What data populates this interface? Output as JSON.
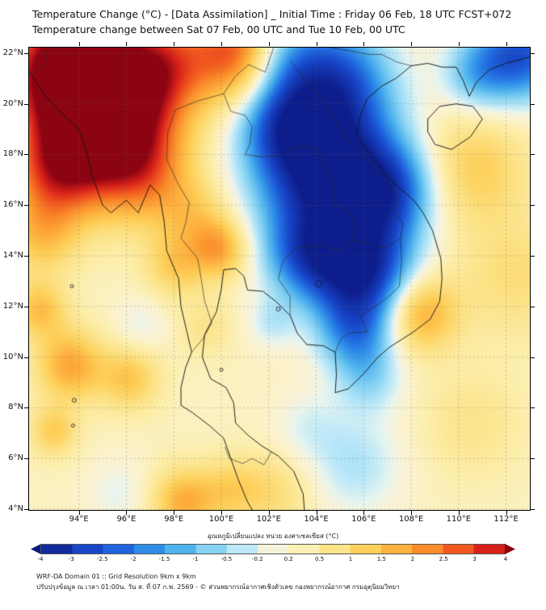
{
  "header": {
    "title_line1": "Temperature Change (°C) - [Data Assimilation] _ Initial Time : Friday 06 Feb, 18 UTC FCST+072",
    "title_line2": "Temperature change between Sat 07 Feb, 00 UTC and Tue 10 Feb, 00 UTC"
  },
  "footer": {
    "line1": "WRF-DA Domain 01 :: Grid Resolution 9km x 9km",
    "line2": "ปรับปรุงข้อมูล ณ เวลา 01:00น. วัน ส. ที่ 07 ก.พ. 2569 - © ส่วนพยากรณ์อากาศเชิงตัวเลข กองพยากรณ์อากาศ กรมอุตุนิยมวิทยา"
  },
  "colorbar": {
    "label": "อุณหภูมิเปลี่ยนแปลง หน่วย องศาเซลเซียส (°C)",
    "tip_left": "#081a7a",
    "tip_right": "#8c0410",
    "segments": [
      "#122a9e",
      "#1845c6",
      "#2063dd",
      "#2e8ce8",
      "#4fb3ee",
      "#85d2f3",
      "#bce8f8",
      "#f5f2dc",
      "#fdf0b4",
      "#fce488",
      "#fdd05a",
      "#fdb240",
      "#fb8c2a",
      "#f2581e",
      "#d81f1a"
    ],
    "ticks": [
      "-4",
      "-3",
      "-2.5",
      "-2",
      "-1.5",
      "-1",
      "-0.5",
      "-0.2",
      "0.2",
      "0.5",
      "1",
      "1.5",
      "2",
      "2.5",
      "3",
      "4"
    ],
    "stops": [
      [
        -4,
        "#0d1e8c"
      ],
      [
        -3,
        "#1743c4"
      ],
      [
        -2.5,
        "#1f62dc"
      ],
      [
        -2,
        "#2d8ae8"
      ],
      [
        -1.5,
        "#4eb2ee"
      ],
      [
        -1,
        "#84d1f3"
      ],
      [
        -0.5,
        "#bce8f8"
      ],
      [
        -0.2,
        "#e6f4ef"
      ],
      [
        0,
        "#f7f2da"
      ],
      [
        0.2,
        "#fbf2cc"
      ],
      [
        0.5,
        "#fceeab"
      ],
      [
        1,
        "#fce184"
      ],
      [
        1.5,
        "#fdcf58"
      ],
      [
        2,
        "#fdb03e"
      ],
      [
        2.5,
        "#fa8a2a"
      ],
      [
        3,
        "#f0541e"
      ],
      [
        3.5,
        "#d31e1a"
      ],
      [
        4,
        "#8c0412"
      ]
    ]
  },
  "chart_data": {
    "type": "heatmap",
    "title": "Temperature Change (°C) - [Data Assimilation]",
    "units": "°C",
    "grid": true,
    "proj": {
      "lon_min": 91.9,
      "lon_max": 113.0,
      "lat_min": 3.97,
      "lat_max": 22.22
    },
    "x_ticks": [
      {
        "value": 94,
        "label": "94°E"
      },
      {
        "value": 96,
        "label": "96°E"
      },
      {
        "value": 98,
        "label": "98°E"
      },
      {
        "value": 100,
        "label": "100°E"
      },
      {
        "value": 102,
        "label": "102°E"
      },
      {
        "value": 104,
        "label": "104°E"
      },
      {
        "value": 106,
        "label": "106°E"
      },
      {
        "value": 108,
        "label": "108°E"
      },
      {
        "value": 110,
        "label": "110°E"
      },
      {
        "value": 112,
        "label": "112°E"
      }
    ],
    "y_ticks": [
      {
        "value": 22,
        "label": "22°N"
      },
      {
        "value": 20,
        "label": "20°N"
      },
      {
        "value": 18,
        "label": "18°N"
      },
      {
        "value": 16,
        "label": "16°N"
      },
      {
        "value": 14,
        "label": "14°N"
      },
      {
        "value": 12,
        "label": "12°N"
      },
      {
        "value": 10,
        "label": "10°N"
      },
      {
        "value": 8,
        "label": "8°N"
      },
      {
        "value": 6,
        "label": "6°N"
      },
      {
        "value": 4,
        "label": "4°N"
      }
    ],
    "base_value": 0.3,
    "field_blobs": [
      [
        95.0,
        19.6,
        2.0,
        4.4
      ],
      [
        93.2,
        21.6,
        1.7,
        3.4
      ],
      [
        97.3,
        21.6,
        1.5,
        2.2
      ],
      [
        100.8,
        22.1,
        1.4,
        3.0
      ],
      [
        93.0,
        17.3,
        1.4,
        2.2
      ],
      [
        92.4,
        14.8,
        1.1,
        1.2
      ],
      [
        96.6,
        17.3,
        1.4,
        1.6
      ],
      [
        98.8,
        15.6,
        1.1,
        1.0
      ],
      [
        99.9,
        14.3,
        0.85,
        1.7
      ],
      [
        98.0,
        13.6,
        0.9,
        1.1
      ],
      [
        92.3,
        11.9,
        0.8,
        1.4
      ],
      [
        93.6,
        9.7,
        1.0,
        1.8
      ],
      [
        96.1,
        9.2,
        0.9,
        1.3
      ],
      [
        92.9,
        7.1,
        0.7,
        1.2
      ],
      [
        98.4,
        4.3,
        0.95,
        1.7
      ],
      [
        100.4,
        4.8,
        0.9,
        1.0
      ],
      [
        102.3,
        4.7,
        1.1,
        0.8
      ],
      [
        108.3,
        11.8,
        1.1,
        2.0
      ],
      [
        110.6,
        17.5,
        1.6,
        1.2
      ],
      [
        112.3,
        13.2,
        1.7,
        0.8
      ],
      [
        110.5,
        7.4,
        1.5,
        0.6
      ],
      [
        99.3,
        11.2,
        0.8,
        0.6
      ],
      [
        104.5,
        17.2,
        2.0,
        -4.6
      ],
      [
        105.9,
        13.4,
        1.5,
        -3.8
      ],
      [
        104.6,
        20.9,
        1.7,
        -3.0
      ],
      [
        102.5,
        19.2,
        1.3,
        -2.0
      ],
      [
        107.1,
        16.6,
        1.3,
        -2.2
      ],
      [
        103.5,
        14.0,
        1.2,
        -2.0
      ],
      [
        105.6,
        11.0,
        1.1,
        -1.8
      ],
      [
        102.3,
        22.0,
        1.2,
        -1.4
      ],
      [
        106.2,
        9.2,
        1.0,
        -1.0
      ],
      [
        112.6,
        22.0,
        1.3,
        -3.0
      ],
      [
        110.7,
        21.2,
        1.0,
        -1.4
      ],
      [
        96.6,
        11.3,
        0.8,
        -0.5
      ],
      [
        102.1,
        11.4,
        0.7,
        -0.7
      ],
      [
        105.6,
        5.8,
        1.4,
        -0.9
      ],
      [
        103.6,
        7.3,
        1.0,
        -0.5
      ],
      [
        95.6,
        4.7,
        0.9,
        -0.5
      ]
    ]
  },
  "map_lines": {
    "coast": [
      [
        [
          91.9,
          21.3
        ],
        [
          92.6,
          20.3
        ],
        [
          93.3,
          19.6
        ],
        [
          94.0,
          19.0
        ],
        [
          94.3,
          18.2
        ],
        [
          94.55,
          17.2
        ],
        [
          95.0,
          16.0
        ],
        [
          95.35,
          15.7
        ],
        [
          96.0,
          16.2
        ],
        [
          96.5,
          15.7
        ],
        [
          97.0,
          16.8
        ],
        [
          97.4,
          16.4
        ],
        [
          97.6,
          15.3
        ],
        [
          97.7,
          14.2
        ],
        [
          98.2,
          13.1
        ],
        [
          98.3,
          12.0
        ],
        [
          98.55,
          11.0
        ],
        [
          98.75,
          10.2
        ],
        [
          98.5,
          9.6
        ],
        [
          98.3,
          8.8
        ],
        [
          98.3,
          8.1
        ],
        [
          98.8,
          7.8
        ],
        [
          99.5,
          7.3
        ],
        [
          100.1,
          6.8
        ],
        [
          100.4,
          6.0
        ],
        [
          100.7,
          5.2
        ],
        [
          101.1,
          4.3
        ],
        [
          101.3,
          3.97
        ]
      ],
      [
        [
          103.5,
          3.97
        ],
        [
          103.45,
          4.6
        ],
        [
          103.05,
          5.5
        ],
        [
          102.4,
          6.1
        ],
        [
          101.7,
          6.5
        ],
        [
          101.15,
          6.9
        ],
        [
          100.6,
          7.4
        ],
        [
          100.52,
          8.2
        ],
        [
          100.2,
          8.8
        ],
        [
          99.55,
          9.15
        ],
        [
          99.2,
          10.0
        ],
        [
          99.3,
          10.9
        ],
        [
          99.8,
          11.8
        ],
        [
          100.0,
          12.7
        ],
        [
          100.1,
          13.45
        ],
        [
          100.6,
          13.5
        ],
        [
          100.95,
          13.2
        ],
        [
          101.1,
          12.65
        ],
        [
          101.75,
          12.6
        ],
        [
          102.3,
          12.2
        ],
        [
          102.9,
          11.65
        ],
        [
          103.2,
          10.95
        ],
        [
          103.6,
          10.5
        ],
        [
          104.3,
          10.45
        ],
        [
          104.8,
          10.2
        ],
        [
          104.85,
          9.3
        ],
        [
          104.8,
          8.6
        ],
        [
          105.35,
          8.75
        ],
        [
          106.0,
          9.35
        ],
        [
          106.6,
          10.0
        ],
        [
          107.1,
          10.4
        ],
        [
          107.6,
          10.7
        ],
        [
          108.1,
          11.0
        ],
        [
          108.8,
          11.5
        ],
        [
          109.2,
          12.2
        ],
        [
          109.3,
          13.1
        ],
        [
          109.25,
          13.9
        ],
        [
          108.9,
          15.0
        ],
        [
          108.5,
          15.7
        ],
        [
          108.15,
          16.15
        ],
        [
          107.6,
          16.6
        ],
        [
          107.1,
          17.05
        ],
        [
          106.6,
          17.6
        ],
        [
          106.1,
          18.2
        ],
        [
          105.7,
          18.85
        ],
        [
          105.85,
          19.5
        ],
        [
          106.15,
          20.2
        ],
        [
          106.75,
          20.7
        ],
        [
          107.35,
          21.0
        ],
        [
          108.0,
          21.5
        ],
        [
          108.7,
          21.6
        ],
        [
          109.3,
          21.45
        ],
        [
          109.9,
          21.45
        ],
        [
          110.2,
          20.9
        ],
        [
          110.45,
          20.3
        ],
        [
          110.75,
          20.85
        ],
        [
          111.3,
          21.35
        ],
        [
          112.0,
          21.6
        ],
        [
          113.0,
          21.85
        ]
      ],
      [
        [
          108.7,
          19.4
        ],
        [
          109.2,
          19.9
        ],
        [
          109.9,
          20.0
        ],
        [
          110.6,
          19.9
        ],
        [
          111.0,
          19.4
        ],
        [
          110.5,
          18.7
        ],
        [
          109.7,
          18.2
        ],
        [
          109.0,
          18.4
        ],
        [
          108.7,
          18.9
        ],
        [
          108.7,
          19.4
        ]
      ]
    ],
    "borders": [
      [
        [
          97.75,
          18.9
        ],
        [
          97.7,
          17.8
        ],
        [
          98.2,
          16.8
        ],
        [
          98.65,
          16.1
        ],
        [
          98.5,
          15.3
        ],
        [
          98.3,
          14.7
        ],
        [
          99.0,
          13.9
        ],
        [
          99.15,
          13.1
        ],
        [
          99.3,
          12.2
        ],
        [
          99.6,
          11.35
        ],
        [
          99.2,
          10.7
        ],
        [
          98.75,
          10.2
        ]
      ],
      [
        [
          97.75,
          18.9
        ],
        [
          98.05,
          19.75
        ],
        [
          98.95,
          20.1
        ],
        [
          100.1,
          20.4
        ],
        [
          100.6,
          21.1
        ],
        [
          101.15,
          21.55
        ]
      ],
      [
        [
          101.15,
          21.55
        ],
        [
          101.85,
          21.25
        ],
        [
          102.2,
          22.22
        ]
      ],
      [
        [
          104.6,
          22.22
        ],
        [
          105.4,
          22.1
        ],
        [
          106.2,
          21.95
        ],
        [
          106.75,
          21.95
        ],
        [
          107.4,
          21.65
        ],
        [
          108.0,
          21.5
        ]
      ],
      [
        [
          100.1,
          20.4
        ],
        [
          100.4,
          19.7
        ],
        [
          101.0,
          19.55
        ],
        [
          101.3,
          19.1
        ],
        [
          101.2,
          18.4
        ],
        [
          101.0,
          18.0
        ],
        [
          101.75,
          17.9
        ],
        [
          102.5,
          17.95
        ],
        [
          103.1,
          18.3
        ],
        [
          103.95,
          18.3
        ],
        [
          104.35,
          17.65
        ],
        [
          104.75,
          16.9
        ],
        [
          104.75,
          16.05
        ],
        [
          105.4,
          15.8
        ],
        [
          105.6,
          15.2
        ],
        [
          105.5,
          14.6
        ]
      ],
      [
        [
          105.5,
          14.6
        ],
        [
          105.1,
          14.2
        ],
        [
          104.2,
          14.4
        ],
        [
          103.2,
          14.35
        ],
        [
          102.6,
          13.8
        ],
        [
          102.4,
          13.1
        ],
        [
          102.9,
          12.4
        ],
        [
          102.9,
          11.65
        ]
      ],
      [
        [
          102.9,
          21.7
        ],
        [
          103.8,
          20.65
        ],
        [
          104.5,
          19.9
        ],
        [
          104.9,
          19.2
        ],
        [
          105.2,
          18.6
        ],
        [
          105.9,
          18.1
        ],
        [
          106.5,
          17.4
        ],
        [
          107.0,
          16.9
        ],
        [
          107.45,
          16.2
        ],
        [
          107.2,
          15.85
        ],
        [
          107.65,
          15.3
        ],
        [
          107.55,
          14.7
        ]
      ],
      [
        [
          105.5,
          14.6
        ],
        [
          106.2,
          14.5
        ],
        [
          106.9,
          14.3
        ],
        [
          107.55,
          14.7
        ]
      ],
      [
        [
          107.55,
          14.7
        ],
        [
          107.6,
          13.8
        ],
        [
          107.5,
          12.8
        ],
        [
          107.0,
          12.35
        ],
        [
          106.4,
          11.95
        ],
        [
          105.85,
          11.65
        ],
        [
          106.15,
          11.0
        ],
        [
          105.4,
          10.95
        ],
        [
          105.05,
          10.75
        ],
        [
          104.8,
          10.2
        ]
      ],
      [
        [
          100.15,
          6.45
        ],
        [
          100.35,
          6.0
        ],
        [
          100.9,
          5.8
        ],
        [
          101.3,
          6.0
        ],
        [
          101.8,
          5.75
        ],
        [
          102.1,
          6.25
        ]
      ],
      [
        [
          92.2,
          21.2
        ],
        [
          92.6,
          21.6
        ],
        [
          92.7,
          22.22
        ]
      ]
    ],
    "islands": [
      [
        93.8,
        8.3,
        2.5
      ],
      [
        93.75,
        7.3,
        2
      ],
      [
        93.7,
        12.8,
        2
      ],
      [
        100.0,
        9.5,
        2
      ],
      [
        102.4,
        11.9,
        2.5
      ],
      [
        104.1,
        12.9,
        4
      ]
    ]
  }
}
